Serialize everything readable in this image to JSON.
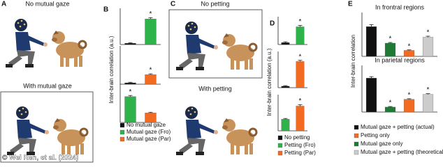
{
  "figure": {
    "credit": "© Wei Ren, et al. (2024)",
    "panels": {
      "a": {
        "letter": "A",
        "top": "No mutual gaze",
        "bottom": "With mutual gaze"
      },
      "b": {
        "letter": "B",
        "ylabel": "Inter-brain correlation (a.u.)",
        "legend": [
          {
            "name": "No mutual gaze",
            "color": "#111111"
          },
          {
            "name": "Mutual gaze (Fro)",
            "color": "#2db34a"
          },
          {
            "name": "Mutual gaze (Par)",
            "color": "#f26b21"
          }
        ]
      },
      "c": {
        "letter": "C",
        "top": "No petting",
        "bottom": "With petting"
      },
      "d": {
        "letter": "D",
        "ylabel": "Inter-brain correlation (a.u.)",
        "legend": [
          {
            "name": "No petting",
            "color": "#111111"
          },
          {
            "name": "Petting (Fro)",
            "color": "#2db34a"
          },
          {
            "name": "Petting (Par)",
            "color": "#f26b21"
          }
        ]
      },
      "e": {
        "letter": "E",
        "ylabel": "Inter-brain correlation",
        "legend": [
          {
            "name": "Mutual gaze + petting (actual)",
            "color": "#111111"
          },
          {
            "name": "Petting only",
            "color": "#f26b21"
          },
          {
            "name": "Mutual gaze only",
            "color": "#1f7a34"
          },
          {
            "name": "Mutual gaze + petting (theoretical)",
            "color": "#cccccc"
          }
        ]
      }
    }
  },
  "chart_data": [
    {
      "type": "bar",
      "values": [
        0.01,
        0.2
      ],
      "errors": [
        0.004,
        0.01
      ],
      "colors": [
        "#111111",
        "#2db34a"
      ],
      "significance": [
        null,
        "*"
      ],
      "ylim": [
        0,
        0.25
      ]
    },
    {
      "type": "bar",
      "values": [
        0.01,
        0.07
      ],
      "errors": [
        0.004,
        0.006
      ],
      "colors": [
        "#111111",
        "#f26b21"
      ],
      "significance": [
        null,
        "*"
      ],
      "ylim": [
        0,
        0.25
      ]
    },
    {
      "type": "bar",
      "values": [
        0.19,
        0.07
      ],
      "errors": [
        0.008,
        0.005
      ],
      "colors": [
        "#2db34a",
        "#f26b21"
      ],
      "significance": [
        "*",
        null
      ],
      "ylim": [
        0,
        0.25
      ]
    },
    {
      "type": "bar",
      "values": [
        0.01,
        0.09
      ],
      "errors": [
        0.004,
        0.007
      ],
      "colors": [
        "#111111",
        "#2db34a"
      ],
      "significance": [
        null,
        "*"
      ],
      "ylim": [
        0,
        0.12
      ]
    },
    {
      "type": "bar",
      "values": [
        0.01,
        0.18
      ],
      "errors": [
        0.004,
        0.008
      ],
      "colors": [
        "#111111",
        "#f26b21"
      ],
      "significance": [
        null,
        "*"
      ],
      "ylim": [
        0,
        0.22
      ]
    },
    {
      "type": "bar",
      "values": [
        0.08,
        0.17
      ],
      "errors": [
        0.005,
        0.01
      ],
      "colors": [
        "#2db34a",
        "#f26b21"
      ],
      "significance": [
        null,
        "*"
      ],
      "ylim": [
        0,
        0.22
      ]
    },
    {
      "type": "bar",
      "title": "In frontral regions",
      "values": [
        0.45,
        0.2,
        0.09,
        0.29
      ],
      "errors": [
        0.03,
        0.01,
        0.008,
        0.015
      ],
      "colors": [
        "#111111",
        "#1f7a34",
        "#f26b21",
        "#cccccc"
      ],
      "significance": [
        null,
        "*",
        "*",
        "*"
      ],
      "ylim": [
        0,
        0.6
      ]
    },
    {
      "type": "bar",
      "title": "In parietal regions",
      "values": [
        0.48,
        0.07,
        0.18,
        0.25
      ],
      "errors": [
        0.02,
        0.008,
        0.008,
        0.01
      ],
      "colors": [
        "#111111",
        "#1f7a34",
        "#f26b21",
        "#cccccc"
      ],
      "significance": [
        null,
        "*",
        "*",
        "*"
      ],
      "ylim": [
        0,
        0.6
      ]
    }
  ]
}
